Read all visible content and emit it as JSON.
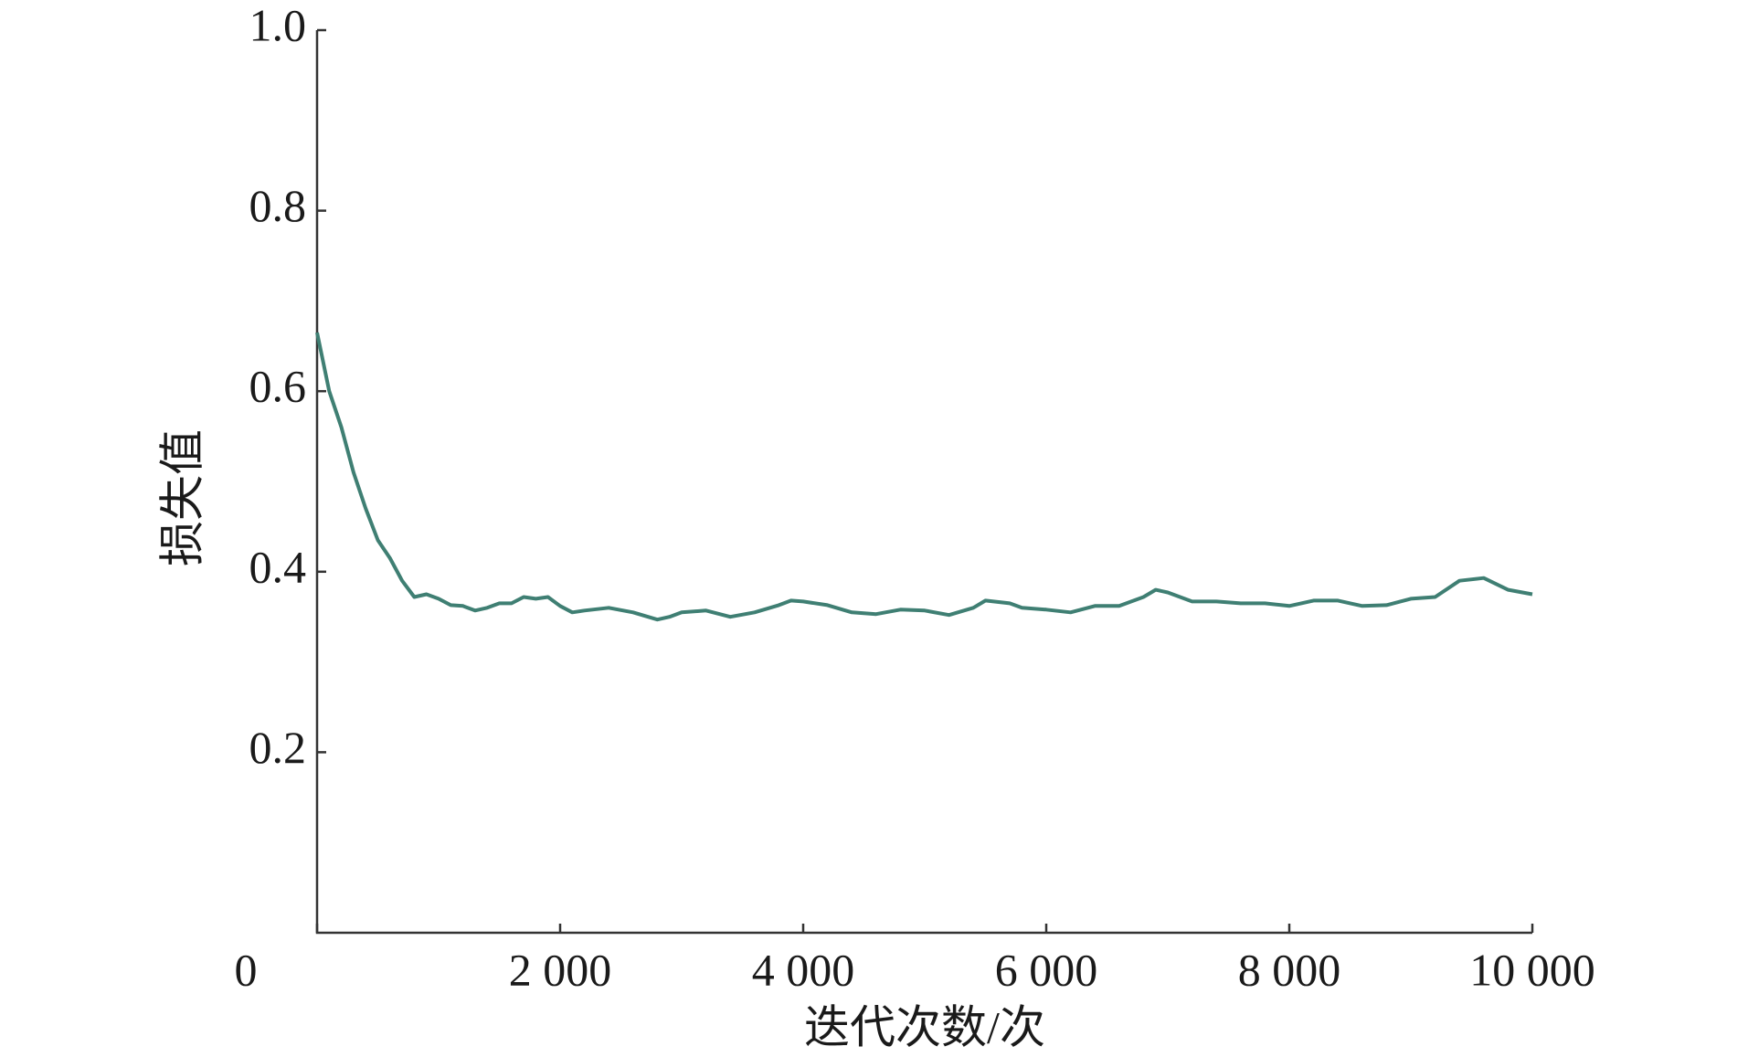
{
  "chart_data": {
    "type": "line",
    "xlabel": "迭代次数/次",
    "ylabel": "损失值",
    "x": [
      0,
      100,
      200,
      300,
      400,
      500,
      600,
      700,
      800,
      900,
      1000,
      1100,
      1200,
      1300,
      1400,
      1500,
      1600,
      1700,
      1800,
      1900,
      2000,
      2100,
      2200,
      2400,
      2600,
      2800,
      2900,
      3000,
      3200,
      3400,
      3600,
      3800,
      3900,
      4000,
      4200,
      4400,
      4600,
      4800,
      5000,
      5200,
      5400,
      5500,
      5700,
      5800,
      6000,
      6200,
      6400,
      6600,
      6800,
      6900,
      7000,
      7200,
      7400,
      7600,
      7800,
      8000,
      8200,
      8400,
      8600,
      8800,
      9000,
      9200,
      9400,
      9600,
      9800,
      10000
    ],
    "values": [
      0.665,
      0.6,
      0.56,
      0.51,
      0.47,
      0.435,
      0.415,
      0.39,
      0.372,
      0.375,
      0.37,
      0.363,
      0.362,
      0.357,
      0.36,
      0.365,
      0.365,
      0.372,
      0.37,
      0.372,
      0.362,
      0.355,
      0.357,
      0.36,
      0.355,
      0.347,
      0.35,
      0.355,
      0.357,
      0.35,
      0.355,
      0.363,
      0.368,
      0.367,
      0.363,
      0.355,
      0.353,
      0.358,
      0.357,
      0.352,
      0.36,
      0.368,
      0.365,
      0.36,
      0.358,
      0.355,
      0.362,
      0.362,
      0.372,
      0.38,
      0.377,
      0.367,
      0.367,
      0.365,
      0.365,
      0.362,
      0.368,
      0.368,
      0.362,
      0.363,
      0.37,
      0.372,
      0.39,
      0.393,
      0.38,
      0.375
    ],
    "color": "#3f7f73",
    "xlim": [
      0,
      10000
    ],
    "xticks": [
      0,
      {
        "value": 2000,
        "label": "2 000"
      },
      {
        "value": 4000,
        "label": "4 000"
      },
      {
        "value": 6000,
        "label": "6 000"
      },
      {
        "value": 8000,
        "label": "8 000"
      },
      {
        "value": 10000,
        "label": "10 000"
      }
    ],
    "ylim": [
      0,
      1
    ],
    "yticks": [
      0.2,
      0.4,
      0.6,
      0.8,
      {
        "value": 1,
        "label": "1.0"
      }
    ]
  }
}
